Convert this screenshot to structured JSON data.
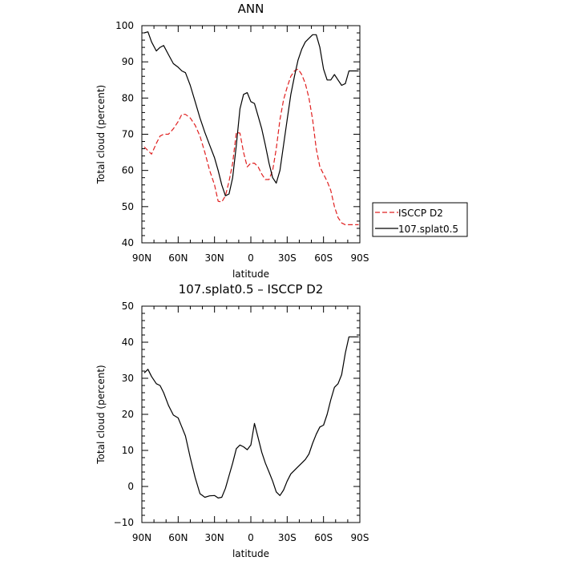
{
  "chart_data": [
    {
      "type": "line",
      "title": "ANN",
      "xlabel": "latitude",
      "ylabel": "Total cloud (percent)",
      "xlim": [
        -90,
        90
      ],
      "ylim": [
        40,
        100
      ],
      "x_ticks": [
        -90,
        -60,
        -30,
        0,
        30,
        60,
        90
      ],
      "x_tick_labels": [
        "90N",
        "60N",
        "30N",
        "0",
        "30S",
        "60S",
        "90S"
      ],
      "y_ticks": [
        40,
        50,
        60,
        70,
        80,
        90,
        100
      ],
      "y_tick_labels": [
        "40",
        "50",
        "60",
        "70",
        "80",
        "90",
        "100"
      ],
      "legend_position": "right",
      "series": [
        {
          "name": "ISCCP D2",
          "color": "#e02020",
          "dash": "dashed",
          "x": [
            -88,
            -85,
            -82,
            -78,
            -75,
            -72,
            -68,
            -64,
            -60,
            -57,
            -54,
            -50,
            -46,
            -42,
            -38,
            -34,
            -30,
            -27,
            -24,
            -21,
            -18,
            -15,
            -12,
            -9,
            -6,
            -3,
            0,
            3,
            6,
            9,
            12,
            15,
            18,
            21,
            24,
            27,
            30,
            33,
            36,
            39,
            42,
            45,
            48,
            51,
            54,
            57,
            60,
            63,
            66,
            69,
            72,
            75,
            78,
            81,
            84,
            87,
            89
          ],
          "values": [
            66.5,
            65.5,
            64.5,
            67.5,
            69.5,
            70,
            70,
            71.5,
            73.5,
            75.5,
            75.5,
            74.5,
            72.5,
            69.5,
            65,
            60,
            56,
            51.5,
            51.3,
            53,
            57,
            62,
            70.5,
            70.3,
            65,
            61,
            62,
            62,
            61,
            59,
            57.5,
            57.5,
            60,
            66,
            74,
            79.5,
            83,
            86,
            87.5,
            88,
            86.5,
            84,
            80,
            74,
            66,
            61,
            59,
            57,
            54.5,
            50,
            47,
            45.5,
            45,
            45,
            45,
            45,
            45
          ]
        },
        {
          "name": "107.splat0.5",
          "color": "#000000",
          "dash": "solid",
          "x": [
            -88,
            -85,
            -82,
            -78,
            -75,
            -72,
            -68,
            -64,
            -60,
            -57,
            -54,
            -50,
            -46,
            -42,
            -38,
            -34,
            -30,
            -27,
            -24,
            -21,
            -18,
            -15,
            -12,
            -9,
            -6,
            -3,
            0,
            3,
            6,
            9,
            12,
            15,
            18,
            21,
            24,
            27,
            30,
            33,
            36,
            39,
            42,
            45,
            48,
            51,
            54,
            57,
            60,
            63,
            66,
            69,
            72,
            75,
            78,
            81,
            84,
            87,
            89
          ],
          "values": [
            98,
            98.3,
            95.5,
            93,
            94,
            94.5,
            92,
            89.5,
            88.5,
            87.5,
            87,
            83.5,
            79,
            74.5,
            70.5,
            67,
            63.5,
            60,
            56,
            53,
            53.5,
            58,
            67,
            77,
            81,
            81.5,
            79,
            78.5,
            75,
            71.5,
            67,
            62,
            58,
            56.5,
            60,
            67,
            74,
            81,
            86,
            90.5,
            93.5,
            95.5,
            96.5,
            97.5,
            97.5,
            94,
            88,
            85,
            85,
            86.5,
            85,
            83.5,
            84,
            87.5,
            87.5,
            87.5,
            87.5
          ]
        }
      ]
    },
    {
      "type": "line",
      "title": "107.splat0.5 – ISCCP D2",
      "xlabel": "latitude",
      "ylabel": "Total cloud (percent)",
      "xlim": [
        -90,
        90
      ],
      "ylim": [
        -10,
        50
      ],
      "x_ticks": [
        -90,
        -60,
        -30,
        0,
        30,
        60,
        90
      ],
      "x_tick_labels": [
        "90N",
        "60N",
        "30N",
        "0",
        "30S",
        "60S",
        "90S"
      ],
      "y_ticks": [
        -10,
        0,
        10,
        20,
        30,
        40,
        50
      ],
      "y_tick_labels": [
        "−10",
        "0",
        "10",
        "20",
        "30",
        "40",
        "50"
      ],
      "series": [
        {
          "color": "#000000",
          "dash": "solid",
          "x": [
            -88,
            -85,
            -82,
            -78,
            -75,
            -72,
            -68,
            -64,
            -60,
            -57,
            -54,
            -50,
            -46,
            -42,
            -38,
            -34,
            -30,
            -27,
            -24,
            -21,
            -18,
            -15,
            -12,
            -9,
            -6,
            -3,
            0,
            3,
            6,
            9,
            12,
            15,
            18,
            21,
            24,
            27,
            30,
            33,
            36,
            39,
            42,
            45,
            48,
            51,
            54,
            57,
            60,
            63,
            66,
            69,
            72,
            75,
            78,
            81,
            84,
            87,
            89
          ],
          "values": [
            31.5,
            32.5,
            30.5,
            28.5,
            28,
            26,
            22.5,
            19.8,
            19,
            16.5,
            14,
            8,
            2.5,
            -2,
            -3,
            -2.6,
            -2.5,
            -3.2,
            -3,
            -0.5,
            3,
            6.5,
            10.5,
            11.5,
            11,
            10.2,
            11.5,
            17.5,
            13.5,
            9.5,
            6.5,
            4,
            1.5,
            -1.5,
            -2.5,
            -1,
            1.5,
            3.5,
            4.5,
            5.5,
            6.5,
            7.5,
            9,
            12,
            14.5,
            16.5,
            17,
            20,
            24,
            27.5,
            28.5,
            31,
            37,
            41.5,
            41.5,
            41.5,
            41.5
          ]
        }
      ]
    }
  ]
}
